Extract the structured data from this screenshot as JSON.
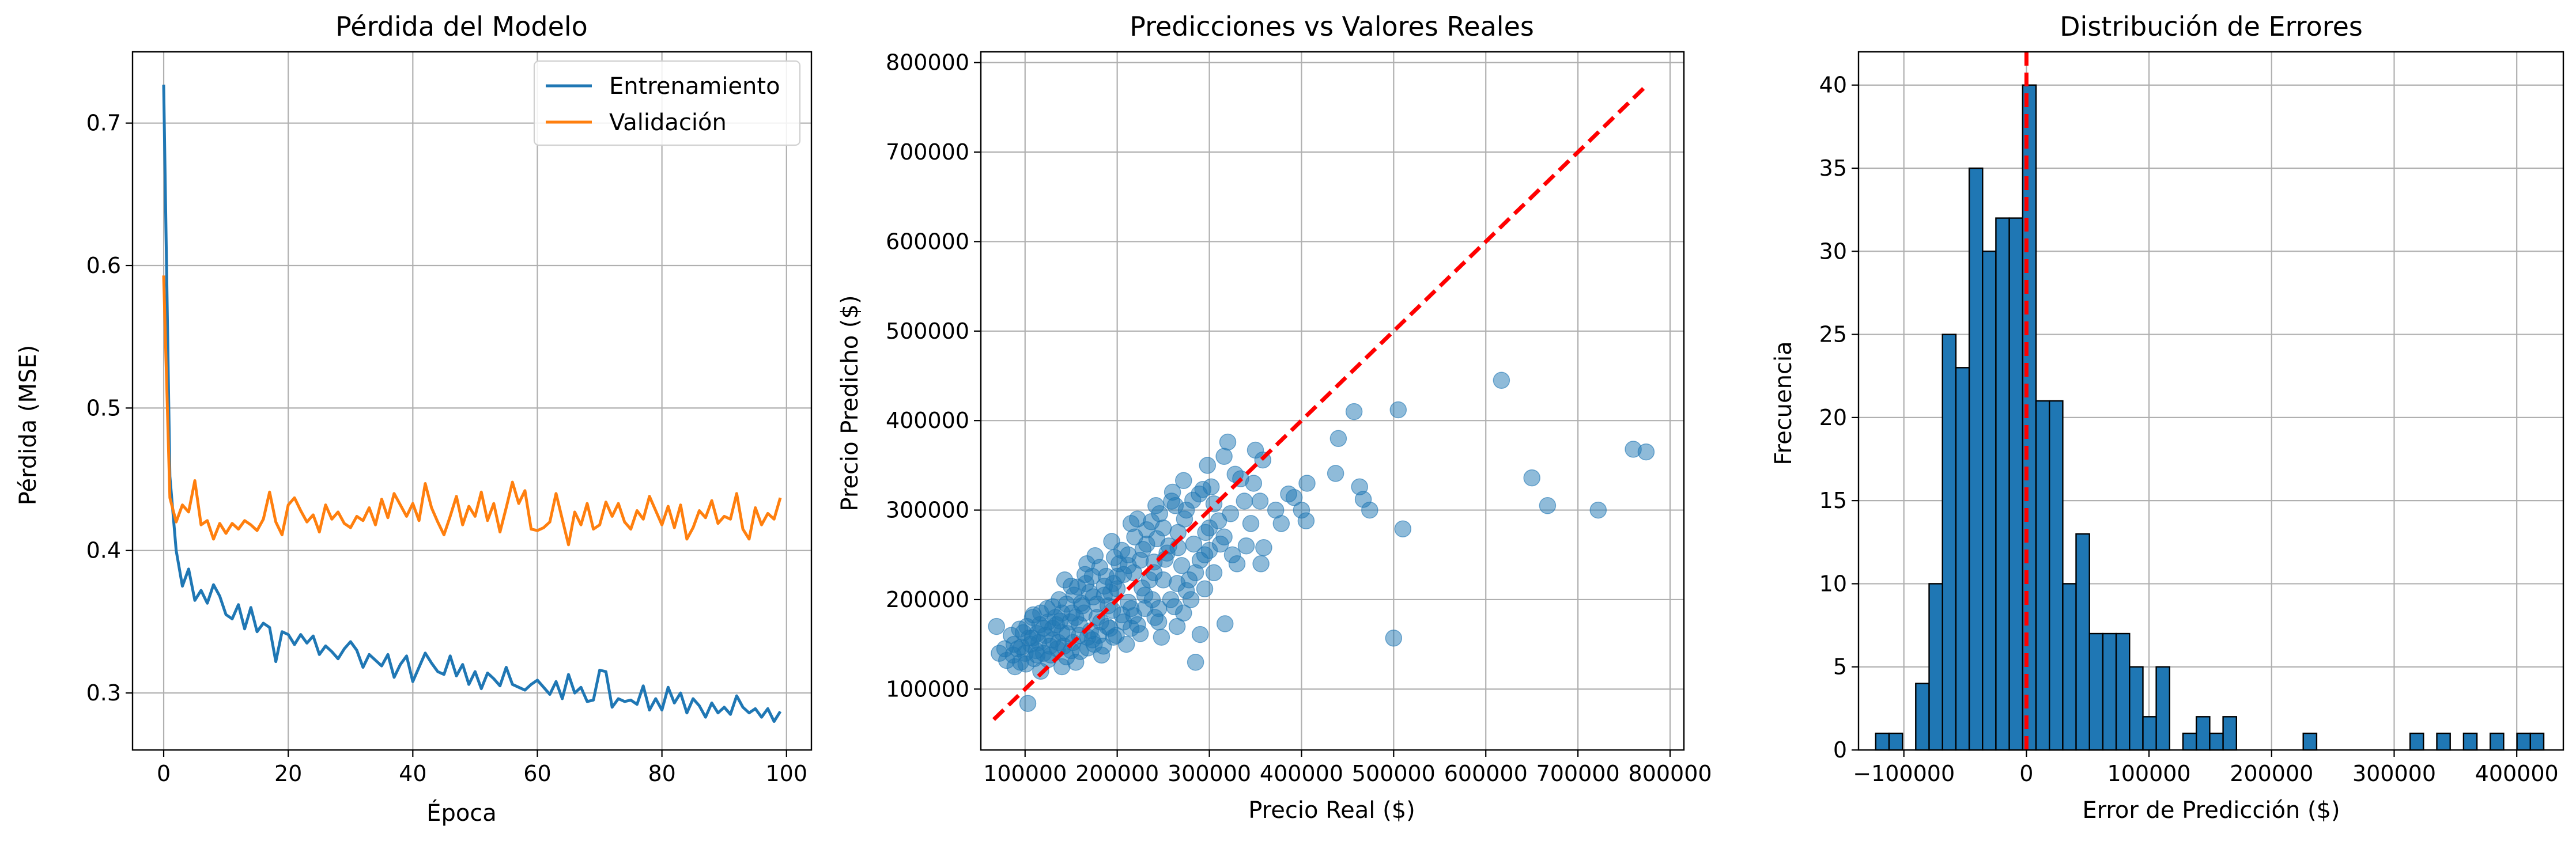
{
  "chart_data": [
    {
      "type": "line",
      "title": "Pérdida del Modelo",
      "xlabel": "Época",
      "ylabel": "Pérdida (MSE)",
      "xlim": [
        -5,
        104
      ],
      "ylim": [
        0.26,
        0.75
      ],
      "xticks": [
        0,
        20,
        40,
        60,
        80,
        100
      ],
      "yticks": [
        0.3,
        0.4,
        0.5,
        0.6,
        0.7
      ],
      "grid": true,
      "legend": "top-right",
      "series": [
        {
          "name": "Entrenamiento",
          "color": "#1f77b4",
          "x_start": 0,
          "values": [
            0.727,
            0.452,
            0.4,
            0.375,
            0.387,
            0.365,
            0.372,
            0.363,
            0.376,
            0.368,
            0.355,
            0.352,
            0.362,
            0.345,
            0.36,
            0.343,
            0.349,
            0.346,
            0.322,
            0.343,
            0.341,
            0.334,
            0.341,
            0.335,
            0.34,
            0.327,
            0.333,
            0.329,
            0.324,
            0.331,
            0.336,
            0.33,
            0.318,
            0.327,
            0.323,
            0.319,
            0.327,
            0.311,
            0.32,
            0.326,
            0.308,
            0.318,
            0.328,
            0.321,
            0.315,
            0.313,
            0.326,
            0.312,
            0.32,
            0.306,
            0.315,
            0.303,
            0.314,
            0.31,
            0.305,
            0.318,
            0.306,
            0.304,
            0.302,
            0.306,
            0.309,
            0.304,
            0.299,
            0.308,
            0.296,
            0.313,
            0.3,
            0.304,
            0.294,
            0.295,
            0.316,
            0.315,
            0.29,
            0.296,
            0.294,
            0.295,
            0.292,
            0.305,
            0.288,
            0.296,
            0.288,
            0.304,
            0.293,
            0.3,
            0.286,
            0.296,
            0.291,
            0.283,
            0.293,
            0.286,
            0.29,
            0.285,
            0.298,
            0.29,
            0.286,
            0.289,
            0.283,
            0.289,
            0.28,
            0.287
          ]
        },
        {
          "name": "Validación",
          "color": "#ff7f0e",
          "x_start": 0,
          "values": [
            0.593,
            0.437,
            0.42,
            0.432,
            0.427,
            0.449,
            0.418,
            0.421,
            0.408,
            0.419,
            0.412,
            0.419,
            0.415,
            0.421,
            0.418,
            0.414,
            0.422,
            0.441,
            0.42,
            0.411,
            0.432,
            0.437,
            0.428,
            0.42,
            0.425,
            0.413,
            0.432,
            0.422,
            0.427,
            0.419,
            0.416,
            0.424,
            0.421,
            0.43,
            0.418,
            0.436,
            0.423,
            0.44,
            0.432,
            0.424,
            0.433,
            0.421,
            0.447,
            0.43,
            0.42,
            0.411,
            0.424,
            0.438,
            0.418,
            0.431,
            0.424,
            0.441,
            0.421,
            0.433,
            0.413,
            0.43,
            0.448,
            0.433,
            0.442,
            0.415,
            0.414,
            0.416,
            0.42,
            0.44,
            0.422,
            0.404,
            0.427,
            0.418,
            0.433,
            0.415,
            0.418,
            0.434,
            0.424,
            0.433,
            0.42,
            0.415,
            0.428,
            0.422,
            0.438,
            0.428,
            0.418,
            0.431,
            0.416,
            0.432,
            0.408,
            0.416,
            0.428,
            0.423,
            0.435,
            0.419,
            0.424,
            0.422,
            0.44,
            0.415,
            0.408,
            0.43,
            0.418,
            0.426,
            0.422,
            0.437
          ]
        }
      ]
    },
    {
      "type": "scatter",
      "title": "Predicciones vs Valores Reales",
      "xlabel": "Precio Real ($)",
      "ylabel": "Precio Predicho ($)",
      "xlim": [
        52000,
        815000
      ],
      "ylim": [
        32000,
        812000
      ],
      "xticks": [
        100000,
        200000,
        300000,
        400000,
        500000,
        600000,
        700000,
        800000
      ],
      "xtick_labels": [
        "100000",
        "200000",
        "300000",
        "400000",
        "500000",
        "600000",
        "700000",
        "800000"
      ],
      "yticks": [
        100000,
        200000,
        300000,
        400000,
        500000,
        600000,
        700000,
        800000
      ],
      "ytick_labels": [
        "100000",
        "200000",
        "300000",
        "400000",
        "500000",
        "600000",
        "700000",
        "800000"
      ],
      "grid": true,
      "point_color": "#1f77b4",
      "point_alpha": 0.5,
      "reference_line": {
        "from": [
          66000,
          66000
        ],
        "to": [
          775000,
          775000
        ],
        "color": "#ff0000",
        "style": "dashed"
      },
      "points": [
        [
          617000,
          445000
        ],
        [
          505000,
          412000
        ],
        [
          457000,
          410000
        ],
        [
          440000,
          380000
        ],
        [
          760000,
          368000
        ],
        [
          774000,
          365000
        ],
        [
          650000,
          336000
        ],
        [
          667000,
          305000
        ],
        [
          722000,
          300000
        ],
        [
          500000,
          157000
        ],
        [
          510000,
          279000
        ],
        [
          474000,
          300000
        ],
        [
          467000,
          312000
        ],
        [
          463000,
          326000
        ],
        [
          437000,
          341000
        ],
        [
          406000,
          330000
        ],
        [
          392000,
          314000
        ],
        [
          400000,
          300000
        ],
        [
          405000,
          288000
        ],
        [
          378000,
          285000
        ],
        [
          320000,
          376000
        ],
        [
          350000,
          367000
        ],
        [
          316000,
          360000
        ],
        [
          358000,
          356000
        ],
        [
          298000,
          350000
        ],
        [
          328000,
          340000
        ],
        [
          334000,
          335000
        ],
        [
          293000,
          323000
        ],
        [
          272000,
          333000
        ],
        [
          260000,
          320000
        ],
        [
          348000,
          330000
        ],
        [
          305000,
          307000
        ],
        [
          263000,
          305000
        ],
        [
          282000,
          311000
        ],
        [
          242000,
          305000
        ],
        [
          222000,
          290000
        ],
        [
          273000,
          290000
        ],
        [
          300000,
          280000
        ],
        [
          316000,
          270000
        ],
        [
          340000,
          260000
        ],
        [
          359000,
          258000
        ],
        [
          325000,
          250000
        ],
        [
          356000,
          240000
        ],
        [
          295000,
          250000
        ],
        [
          256000,
          260000
        ],
        [
          243000,
          268000
        ],
        [
          232000,
          262000
        ],
        [
          194000,
          265000
        ],
        [
          212000,
          250000
        ],
        [
          176000,
          249000
        ],
        [
          167000,
          240000
        ],
        [
          202000,
          240000
        ],
        [
          285000,
          230000
        ],
        [
          250000,
          222000
        ],
        [
          265000,
          218000
        ],
        [
          235000,
          222000
        ],
        [
          218000,
          230000
        ],
        [
          196000,
          218000
        ],
        [
          173000,
          226000
        ],
        [
          143000,
          222000
        ],
        [
          157000,
          214000
        ],
        [
          193000,
          208000
        ],
        [
          230000,
          205000
        ],
        [
          280000,
          200000
        ],
        [
          245000,
          190000
        ],
        [
          215000,
          190000
        ],
        [
          190000,
          193000
        ],
        [
          162000,
          193000
        ],
        [
          130000,
          192000
        ],
        [
          117000,
          185000
        ],
        [
          151000,
          185000
        ],
        [
          178000,
          180000
        ],
        [
          205000,
          183000
        ],
        [
          245000,
          175000
        ],
        [
          272000,
          185000
        ],
        [
          215000,
          168000
        ],
        [
          189000,
          170000
        ],
        [
          159000,
          172000
        ],
        [
          134000,
          172000
        ],
        [
          108000,
          180000
        ],
        [
          102000,
          170000
        ],
        [
          69000,
          170000
        ],
        [
          85000,
          160000
        ],
        [
          113000,
          162000
        ],
        [
          140000,
          163000
        ],
        [
          168000,
          158000
        ],
        [
          196000,
          158000
        ],
        [
          225000,
          162000
        ],
        [
          248000,
          158000
        ],
        [
          130000,
          155000
        ],
        [
          152000,
          152000
        ],
        [
          185000,
          148000
        ],
        [
          106000,
          150000
        ],
        [
          92000,
          145000
        ],
        [
          72000,
          140000
        ],
        [
          80000,
          132000
        ],
        [
          100000,
          140000
        ],
        [
          120000,
          140000
        ],
        [
          135000,
          145000
        ],
        [
          160000,
          142000
        ],
        [
          175000,
          150000
        ],
        [
          95000,
          130000
        ],
        [
          110000,
          134000
        ],
        [
          125000,
          133000
        ],
        [
          145000,
          136000
        ],
        [
          210000,
          150000
        ],
        [
          117000,
          120000
        ],
        [
          140000,
          125000
        ],
        [
          285000,
          130000
        ],
        [
          290000,
          161000
        ],
        [
          317000,
          173000
        ],
        [
          295000,
          212000
        ],
        [
          265000,
          170000
        ],
        [
          238000,
          200000
        ],
        [
          183000,
          138000
        ],
        [
          155000,
          130000
        ],
        [
          103000,
          84000
        ],
        [
          130000,
          168000
        ],
        [
          149000,
          175000
        ],
        [
          164000,
          185000
        ],
        [
          178000,
          195000
        ],
        [
          186000,
          205000
        ],
        [
          200000,
          212000
        ],
        [
          207000,
          228000
        ],
        [
          225000,
          244000
        ],
        [
          170000,
          208000
        ],
        [
          145000,
          195000
        ],
        [
          125000,
          175000
        ],
        [
          115000,
          152000
        ],
        [
          88000,
          150000
        ],
        [
          98000,
          163000
        ],
        [
          112000,
          143000
        ],
        [
          136000,
          152000
        ],
        [
          159000,
          160000
        ],
        [
          142000,
          148000
        ],
        [
          171000,
          165000
        ],
        [
          182000,
          175000
        ],
        [
          195000,
          188000
        ],
        [
          212000,
          197000
        ],
        [
          227000,
          213000
        ],
        [
          240000,
          230000
        ],
        [
          252000,
          245000
        ],
        [
          270000,
          238000
        ],
        [
          283000,
          262000
        ],
        [
          296000,
          275000
        ],
        [
          310000,
          288000
        ],
        [
          323000,
          296000
        ],
        [
          338000,
          310000
        ],
        [
          266000,
          275000
        ],
        [
          250000,
          280000
        ],
        [
          237000,
          287000
        ],
        [
          219000,
          270000
        ],
        [
          205000,
          255000
        ],
        [
          188000,
          226000
        ],
        [
          166000,
          218000
        ],
        [
          153000,
          205000
        ],
        [
          140000,
          185000
        ],
        [
          122000,
          160000
        ],
        [
          108000,
          157000
        ],
        [
          96000,
          147000
        ],
        [
          87000,
          138000
        ],
        [
          78000,
          145000
        ],
        [
          128000,
          138000
        ],
        [
          150000,
          143000
        ],
        [
          168000,
          146000
        ],
        [
          180000,
          160000
        ],
        [
          192000,
          168000
        ],
        [
          207000,
          175000
        ],
        [
          218000,
          182000
        ],
        [
          230000,
          190000
        ],
        [
          258000,
          200000
        ],
        [
          275000,
          210000
        ],
        [
          305000,
          230000
        ],
        [
          330000,
          240000
        ],
        [
          345000,
          285000
        ],
        [
          372000,
          300000
        ],
        [
          386000,
          318000
        ],
        [
          355000,
          310000
        ],
        [
          312000,
          262000
        ],
        [
          300000,
          255000
        ],
        [
          228000,
          256000
        ],
        [
          212000,
          238000
        ],
        [
          200000,
          226000
        ],
        [
          186000,
          215000
        ],
        [
          174000,
          203000
        ],
        [
          161000,
          196000
        ],
        [
          133000,
          180000
        ],
        [
          120000,
          168000
        ],
        [
          104000,
          157000
        ],
        [
          94000,
          167000
        ],
        [
          116000,
          172000
        ],
        [
          138000,
          176000
        ],
        [
          155000,
          180000
        ],
        [
          146000,
          162000
        ],
        [
          127000,
          148000
        ],
        [
          113000,
          138000
        ],
        [
          101000,
          128000
        ],
        [
          89000,
          125000
        ],
        [
          173000,
          155000
        ],
        [
          199000,
          160000
        ],
        [
          222000,
          172000
        ],
        [
          241000,
          180000
        ],
        [
          262000,
          192000
        ],
        [
          278000,
          222000
        ],
        [
          290000,
          244000
        ],
        [
          240000,
          242000
        ],
        [
          254000,
          252000
        ],
        [
          266000,
          258000
        ],
        [
          232000,
          278000
        ],
        [
          246000,
          296000
        ],
        [
          259000,
          310000
        ],
        [
          275000,
          300000
        ],
        [
          289000,
          318000
        ],
        [
          302000,
          326000
        ],
        [
          215000,
          285000
        ],
        [
          197000,
          247000
        ],
        [
          181000,
          236000
        ],
        [
          165000,
          228000
        ],
        [
          150000,
          215000
        ],
        [
          137000,
          200000
        ],
        [
          124000,
          190000
        ],
        [
          109000,
          183000
        ]
      ]
    },
    {
      "type": "bar",
      "title": "Distribución de Errores",
      "xlabel": "Error de Predicción ($)",
      "ylabel": "Frecuencia",
      "xlim": [
        -137000,
        438000
      ],
      "ylim": [
        0,
        42
      ],
      "xticks": [
        -100000,
        0,
        100000,
        200000,
        300000,
        400000
      ],
      "xtick_labels": [
        "−100000",
        "0",
        "100000",
        "200000",
        "300000",
        "400000"
      ],
      "yticks": [
        0,
        5,
        10,
        15,
        20,
        25,
        30,
        35,
        40
      ],
      "grid": true,
      "bar_color": "#1f77b4",
      "bin_start": -123000,
      "bin_width": 10900,
      "counts": [
        1,
        1,
        0,
        4,
        10,
        25,
        23,
        35,
        30,
        32,
        32,
        40,
        21,
        21,
        10,
        13,
        7,
        7,
        7,
        5,
        2,
        5,
        0,
        1,
        2,
        1,
        2,
        0,
        0,
        0,
        0,
        0,
        1,
        0,
        0,
        0,
        0,
        0,
        0,
        0,
        1,
        0,
        1,
        0,
        1,
        0,
        1,
        0,
        1,
        1
      ],
      "reference_line": {
        "x": 0,
        "color": "#ff0000",
        "style": "dashed"
      }
    }
  ]
}
